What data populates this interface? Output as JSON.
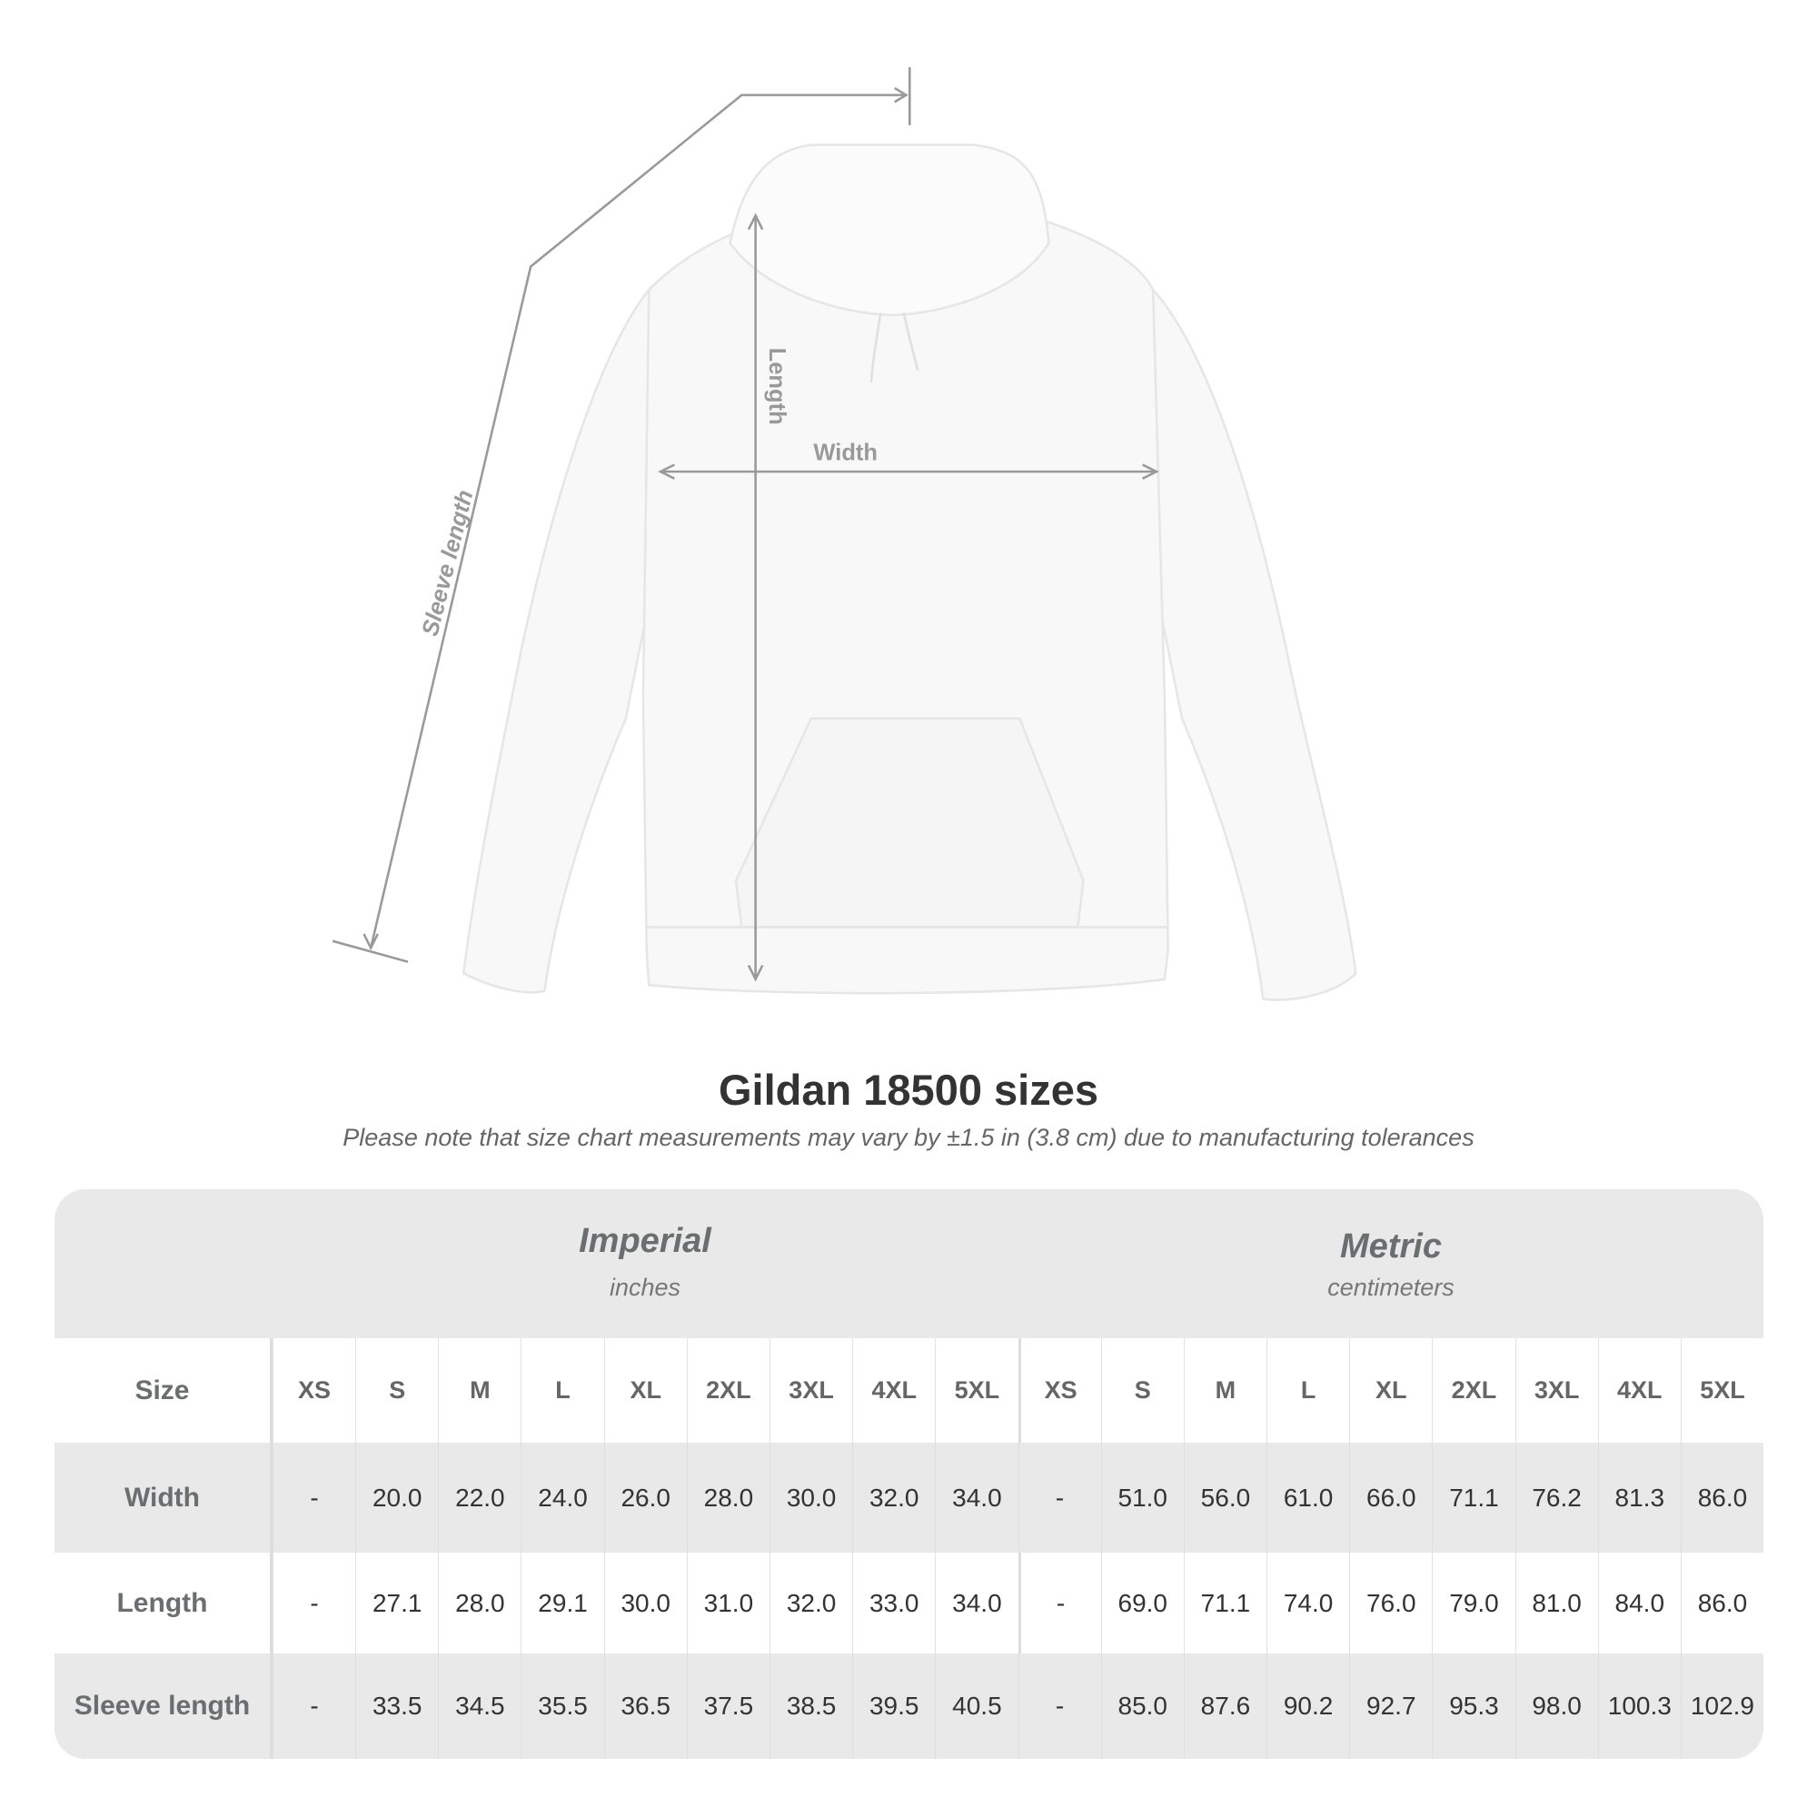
{
  "diagram": {
    "labels": {
      "length": "Length",
      "width": "Width",
      "sleeve_length": "Sleeve length"
    }
  },
  "title": "Gildan 18500 sizes",
  "note": "Please note that size chart measurements may vary by ±1.5 in (3.8 cm) due to manufacturing tolerances",
  "table": {
    "imperial": {
      "name": "Imperial",
      "unit": "inches"
    },
    "metric": {
      "name": "Metric",
      "unit": "centimeters"
    },
    "size_label": "Size",
    "sizes": [
      "XS",
      "S",
      "M",
      "L",
      "XL",
      "2XL",
      "3XL",
      "4XL",
      "5XL"
    ],
    "rows": [
      {
        "label": "Width",
        "imperial": [
          "-",
          "20.0",
          "22.0",
          "24.0",
          "26.0",
          "28.0",
          "30.0",
          "32.0",
          "34.0"
        ],
        "metric": [
          "-",
          "51.0",
          "56.0",
          "61.0",
          "66.0",
          "71.1",
          "76.2",
          "81.3",
          "86.0"
        ]
      },
      {
        "label": "Length",
        "imperial": [
          "-",
          "27.1",
          "28.0",
          "29.1",
          "30.0",
          "31.0",
          "32.0",
          "33.0",
          "34.0"
        ],
        "metric": [
          "-",
          "69.0",
          "71.1",
          "74.0",
          "76.0",
          "79.0",
          "81.0",
          "84.0",
          "86.0"
        ]
      },
      {
        "label": "Sleeve length",
        "imperial": [
          "-",
          "33.5",
          "34.5",
          "35.5",
          "36.5",
          "37.5",
          "38.5",
          "39.5",
          "40.5"
        ],
        "metric": [
          "-",
          "85.0",
          "87.6",
          "90.2",
          "92.7",
          "95.3",
          "98.0",
          "100.3",
          "102.9"
        ]
      }
    ]
  }
}
